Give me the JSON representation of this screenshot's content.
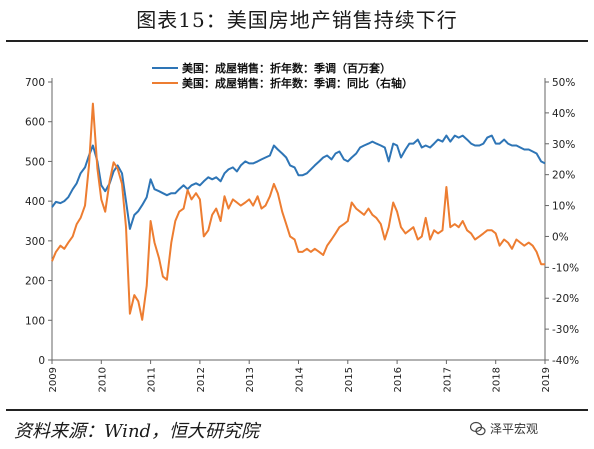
{
  "header": {
    "title": "图表15：美国房地产销售持续下行"
  },
  "footer": {
    "source": "资料来源：Wind，恒大研究院",
    "brand": "泽平宏观"
  },
  "chart_data": {
    "type": "line",
    "x_ticks": [
      "2009",
      "2010",
      "2011",
      "2012",
      "2013",
      "2014",
      "2015",
      "2016",
      "2017",
      "2018",
      "2019"
    ],
    "xlim": [
      2009,
      2019
    ],
    "y_left": {
      "ticks": [
        "0",
        "100",
        "200",
        "300",
        "400",
        "500",
        "600",
        "700"
      ],
      "lim": [
        0,
        700
      ]
    },
    "y_right": {
      "ticks": [
        "50%",
        "40%",
        "30%",
        "20%",
        "10%",
        "0%",
        "-10%",
        "-20%",
        "-30%",
        "-40%"
      ],
      "lim": [
        -40,
        50
      ]
    },
    "colors": {
      "left": "#2E75B6",
      "right": "#ED7D31"
    },
    "series": [
      {
        "name": "美国：成屋销售：折年数：季调（百万套）",
        "axis": "left",
        "points": [
          [
            2009.0,
            385
          ],
          [
            2009.08,
            398
          ],
          [
            2009.17,
            395
          ],
          [
            2009.25,
            400
          ],
          [
            2009.33,
            410
          ],
          [
            2009.42,
            430
          ],
          [
            2009.5,
            445
          ],
          [
            2009.58,
            470
          ],
          [
            2009.67,
            485
          ],
          [
            2009.75,
            515
          ],
          [
            2009.83,
            540
          ],
          [
            2009.92,
            500
          ],
          [
            2010.0,
            440
          ],
          [
            2010.08,
            425
          ],
          [
            2010.17,
            445
          ],
          [
            2010.25,
            475
          ],
          [
            2010.33,
            490
          ],
          [
            2010.42,
            470
          ],
          [
            2010.5,
            400
          ],
          [
            2010.58,
            330
          ],
          [
            2010.67,
            365
          ],
          [
            2010.75,
            375
          ],
          [
            2010.83,
            390
          ],
          [
            2010.92,
            410
          ],
          [
            2011.0,
            455
          ],
          [
            2011.08,
            430
          ],
          [
            2011.17,
            425
          ],
          [
            2011.25,
            420
          ],
          [
            2011.33,
            415
          ],
          [
            2011.42,
            420
          ],
          [
            2011.5,
            420
          ],
          [
            2011.58,
            430
          ],
          [
            2011.67,
            440
          ],
          [
            2011.75,
            430
          ],
          [
            2011.83,
            440
          ],
          [
            2011.92,
            445
          ],
          [
            2012.0,
            440
          ],
          [
            2012.08,
            450
          ],
          [
            2012.17,
            460
          ],
          [
            2012.25,
            455
          ],
          [
            2012.33,
            460
          ],
          [
            2012.42,
            450
          ],
          [
            2012.5,
            470
          ],
          [
            2012.58,
            480
          ],
          [
            2012.67,
            485
          ],
          [
            2012.75,
            475
          ],
          [
            2012.83,
            490
          ],
          [
            2012.92,
            500
          ],
          [
            2013.0,
            495
          ],
          [
            2013.08,
            495
          ],
          [
            2013.17,
            500
          ],
          [
            2013.25,
            505
          ],
          [
            2013.33,
            510
          ],
          [
            2013.42,
            515
          ],
          [
            2013.5,
            540
          ],
          [
            2013.58,
            530
          ],
          [
            2013.67,
            520
          ],
          [
            2013.75,
            510
          ],
          [
            2013.83,
            490
          ],
          [
            2013.92,
            485
          ],
          [
            2014.0,
            465
          ],
          [
            2014.08,
            465
          ],
          [
            2014.17,
            470
          ],
          [
            2014.25,
            480
          ],
          [
            2014.33,
            490
          ],
          [
            2014.42,
            500
          ],
          [
            2014.5,
            510
          ],
          [
            2014.58,
            515
          ],
          [
            2014.67,
            505
          ],
          [
            2014.75,
            520
          ],
          [
            2014.83,
            525
          ],
          [
            2014.92,
            505
          ],
          [
            2015.0,
            500
          ],
          [
            2015.08,
            510
          ],
          [
            2015.17,
            520
          ],
          [
            2015.25,
            535
          ],
          [
            2015.33,
            540
          ],
          [
            2015.42,
            545
          ],
          [
            2015.5,
            550
          ],
          [
            2015.58,
            545
          ],
          [
            2015.67,
            540
          ],
          [
            2015.75,
            535
          ],
          [
            2015.83,
            500
          ],
          [
            2015.92,
            545
          ],
          [
            2016.0,
            540
          ],
          [
            2016.08,
            510
          ],
          [
            2016.17,
            530
          ],
          [
            2016.25,
            545
          ],
          [
            2016.33,
            545
          ],
          [
            2016.42,
            555
          ],
          [
            2016.5,
            535
          ],
          [
            2016.58,
            540
          ],
          [
            2016.67,
            535
          ],
          [
            2016.75,
            545
          ],
          [
            2016.83,
            555
          ],
          [
            2016.92,
            550
          ],
          [
            2017.0,
            565
          ],
          [
            2017.08,
            550
          ],
          [
            2017.17,
            565
          ],
          [
            2017.25,
            560
          ],
          [
            2017.33,
            565
          ],
          [
            2017.42,
            555
          ],
          [
            2017.5,
            545
          ],
          [
            2017.58,
            540
          ],
          [
            2017.67,
            540
          ],
          [
            2017.75,
            545
          ],
          [
            2017.83,
            560
          ],
          [
            2017.92,
            565
          ],
          [
            2018.0,
            545
          ],
          [
            2018.08,
            545
          ],
          [
            2018.17,
            555
          ],
          [
            2018.25,
            545
          ],
          [
            2018.33,
            540
          ],
          [
            2018.42,
            540
          ],
          [
            2018.5,
            535
          ],
          [
            2018.58,
            530
          ],
          [
            2018.67,
            530
          ],
          [
            2018.75,
            525
          ],
          [
            2018.83,
            520
          ],
          [
            2018.92,
            500
          ],
          [
            2019.0,
            495
          ]
        ]
      },
      {
        "name": "美国：成屋销售：折年数：季调：同比（右轴）",
        "axis": "right",
        "points": [
          [
            2009.0,
            -8
          ],
          [
            2009.08,
            -5
          ],
          [
            2009.17,
            -3
          ],
          [
            2009.25,
            -4
          ],
          [
            2009.33,
            -2
          ],
          [
            2009.42,
            0
          ],
          [
            2009.5,
            4
          ],
          [
            2009.58,
            6
          ],
          [
            2009.67,
            10
          ],
          [
            2009.75,
            23
          ],
          [
            2009.83,
            43
          ],
          [
            2009.92,
            22
          ],
          [
            2010.0,
            12
          ],
          [
            2010.08,
            8
          ],
          [
            2010.17,
            18
          ],
          [
            2010.25,
            24
          ],
          [
            2010.33,
            22
          ],
          [
            2010.42,
            17
          ],
          [
            2010.5,
            3
          ],
          [
            2010.58,
            -25
          ],
          [
            2010.67,
            -19
          ],
          [
            2010.75,
            -21
          ],
          [
            2010.83,
            -27
          ],
          [
            2010.92,
            -16
          ],
          [
            2011.0,
            5
          ],
          [
            2011.08,
            -2
          ],
          [
            2011.17,
            -7
          ],
          [
            2011.25,
            -13
          ],
          [
            2011.33,
            -14
          ],
          [
            2011.42,
            -2
          ],
          [
            2011.5,
            5
          ],
          [
            2011.58,
            8
          ],
          [
            2011.67,
            9
          ],
          [
            2011.75,
            15
          ],
          [
            2011.83,
            12
          ],
          [
            2011.92,
            14
          ],
          [
            2012.0,
            12
          ],
          [
            2012.08,
            0
          ],
          [
            2012.17,
            2
          ],
          [
            2012.25,
            7
          ],
          [
            2012.33,
            9
          ],
          [
            2012.42,
            5
          ],
          [
            2012.5,
            13
          ],
          [
            2012.58,
            9
          ],
          [
            2012.67,
            12
          ],
          [
            2012.75,
            11
          ],
          [
            2012.83,
            10
          ],
          [
            2012.92,
            11
          ],
          [
            2013.0,
            12
          ],
          [
            2013.08,
            10
          ],
          [
            2013.17,
            13
          ],
          [
            2013.25,
            9
          ],
          [
            2013.33,
            10
          ],
          [
            2013.42,
            13
          ],
          [
            2013.5,
            17
          ],
          [
            2013.58,
            14
          ],
          [
            2013.67,
            8
          ],
          [
            2013.75,
            4
          ],
          [
            2013.83,
            0
          ],
          [
            2013.92,
            -1
          ],
          [
            2014.0,
            -5
          ],
          [
            2014.08,
            -5
          ],
          [
            2014.17,
            -4
          ],
          [
            2014.25,
            -5
          ],
          [
            2014.33,
            -4
          ],
          [
            2014.42,
            -5
          ],
          [
            2014.5,
            -6
          ],
          [
            2014.58,
            -3
          ],
          [
            2014.67,
            -1
          ],
          [
            2014.75,
            1
          ],
          [
            2014.83,
            3
          ],
          [
            2014.92,
            4
          ],
          [
            2015.0,
            5
          ],
          [
            2015.08,
            11
          ],
          [
            2015.17,
            9
          ],
          [
            2015.25,
            8
          ],
          [
            2015.33,
            7
          ],
          [
            2015.42,
            9
          ],
          [
            2015.5,
            7
          ],
          [
            2015.58,
            6
          ],
          [
            2015.67,
            4
          ],
          [
            2015.75,
            -1
          ],
          [
            2015.83,
            3
          ],
          [
            2015.92,
            11
          ],
          [
            2016.0,
            8
          ],
          [
            2016.08,
            3
          ],
          [
            2016.17,
            1
          ],
          [
            2016.25,
            2
          ],
          [
            2016.33,
            3
          ],
          [
            2016.42,
            -1
          ],
          [
            2016.5,
            0
          ],
          [
            2016.58,
            6
          ],
          [
            2016.67,
            -1
          ],
          [
            2016.75,
            2
          ],
          [
            2016.83,
            1
          ],
          [
            2016.92,
            2
          ],
          [
            2017.0,
            16
          ],
          [
            2017.08,
            3
          ],
          [
            2017.17,
            4
          ],
          [
            2017.25,
            3
          ],
          [
            2017.33,
            5
          ],
          [
            2017.42,
            2
          ],
          [
            2017.5,
            1
          ],
          [
            2017.58,
            -1
          ],
          [
            2017.67,
            0
          ],
          [
            2017.75,
            1
          ],
          [
            2017.83,
            2
          ],
          [
            2017.92,
            2
          ],
          [
            2018.0,
            1
          ],
          [
            2018.08,
            -3
          ],
          [
            2018.17,
            -1
          ],
          [
            2018.25,
            -2
          ],
          [
            2018.33,
            -4
          ],
          [
            2018.42,
            -1
          ],
          [
            2018.5,
            -2
          ],
          [
            2018.58,
            -3
          ],
          [
            2018.67,
            -2
          ],
          [
            2018.75,
            -3
          ],
          [
            2018.83,
            -5
          ],
          [
            2018.92,
            -9
          ],
          [
            2019.0,
            -9
          ]
        ]
      }
    ]
  }
}
